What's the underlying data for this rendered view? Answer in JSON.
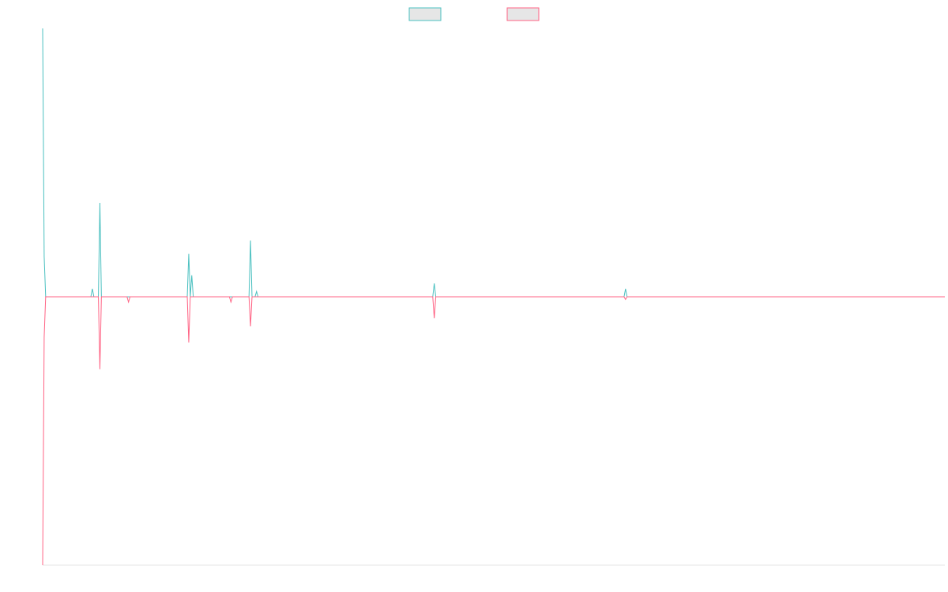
{
  "chart_data": {
    "type": "line",
    "title": "",
    "xlabel": "",
    "ylabel": "",
    "grid": false,
    "legend_position": "top-center",
    "ylim": [
      -100,
      100
    ],
    "series": [
      {
        "name": "",
        "color": "#4bc0c0",
        "fill": "#e6e6e6",
        "values": [
          100,
          15,
          0,
          0,
          0,
          0,
          0,
          0,
          0,
          0,
          0,
          0,
          0,
          0,
          0,
          0,
          0,
          0,
          0,
          0,
          0,
          0,
          0,
          0,
          0,
          0,
          0,
          0,
          0,
          0,
          0,
          0,
          0,
          3,
          0,
          0,
          0,
          0,
          35,
          0,
          0,
          0,
          0,
          0,
          0,
          0,
          0,
          0,
          0,
          0,
          0,
          0,
          0,
          0,
          0,
          0,
          0,
          0,
          0,
          0,
          0,
          0,
          0,
          0,
          0,
          0,
          0,
          0,
          0,
          0,
          0,
          0,
          0,
          0,
          0,
          0,
          0,
          0,
          0,
          0,
          0,
          0,
          0,
          0,
          0,
          0,
          0,
          0,
          0,
          0,
          0,
          0,
          0,
          0,
          0,
          0,
          0,
          16,
          0,
          8,
          0,
          0,
          0,
          0,
          0,
          0,
          0,
          0,
          0,
          0,
          0,
          0,
          0,
          0,
          0,
          0,
          0,
          0,
          0,
          0,
          0,
          0,
          0,
          0,
          0,
          0,
          0,
          0,
          0,
          0,
          0,
          0,
          0,
          0,
          0,
          0,
          0,
          0,
          21,
          0,
          0,
          0,
          2,
          0,
          0,
          0,
          0,
          0,
          0,
          0,
          0,
          0,
          0,
          0,
          0,
          0,
          0,
          0,
          0,
          0,
          0,
          0,
          0,
          0,
          0,
          0,
          0,
          0,
          0,
          0,
          0,
          0,
          0,
          0,
          0,
          0,
          0,
          0,
          0,
          0,
          0,
          0,
          0,
          0,
          0,
          0,
          0,
          0,
          0,
          0,
          0,
          0,
          0,
          0,
          0,
          0,
          0,
          0,
          0,
          0,
          0,
          0,
          0,
          0,
          0,
          0,
          0,
          0,
          0,
          0,
          0,
          0,
          0,
          0,
          0,
          0,
          0,
          0,
          0,
          0,
          0,
          0,
          0,
          0,
          0,
          0,
          0,
          0,
          0,
          0,
          0,
          0,
          0,
          0,
          0,
          0,
          0,
          0,
          0,
          0,
          0,
          0,
          0,
          0,
          0,
          0,
          0,
          0,
          0,
          0,
          0,
          0,
          0,
          0,
          0,
          0,
          0,
          0,
          0,
          0,
          5,
          0,
          0,
          0,
          0,
          0,
          0,
          0,
          0,
          0,
          0,
          0,
          0,
          0,
          0,
          0,
          0,
          0,
          0,
          0,
          0,
          0,
          0,
          0,
          0,
          0,
          0,
          0,
          0,
          0,
          0,
          0,
          0,
          0,
          0,
          0,
          0,
          0,
          0,
          0,
          0,
          0,
          0,
          0,
          0,
          0,
          0,
          0,
          0,
          0,
          0,
          0,
          0,
          0,
          0,
          0,
          0,
          0,
          0,
          0,
          0,
          0,
          0,
          0,
          0,
          0,
          0,
          0,
          0,
          0,
          0,
          0,
          0,
          0,
          0,
          0,
          0,
          0,
          0,
          0,
          0,
          0,
          0,
          0,
          0,
          0,
          0,
          0,
          0,
          0,
          0,
          0,
          0,
          0,
          0,
          0,
          0,
          0,
          0,
          0,
          0,
          0,
          0,
          0,
          0,
          0,
          0,
          0,
          0,
          0,
          0,
          0,
          0,
          0,
          0,
          0,
          0,
          0,
          0,
          0,
          0,
          0,
          0,
          0,
          0,
          0,
          0,
          3,
          0,
          0,
          0,
          0,
          0,
          0,
          0,
          0,
          0,
          0,
          0,
          0,
          0,
          0,
          0,
          0,
          0,
          0,
          0,
          0,
          0,
          0,
          0,
          0,
          0,
          0,
          0,
          0,
          0,
          0,
          0,
          0,
          0,
          0,
          0,
          0,
          0,
          0,
          0,
          0,
          0,
          0,
          0,
          0,
          0,
          0,
          0,
          0,
          0,
          0,
          0,
          0,
          0,
          0,
          0,
          0,
          0,
          0,
          0,
          0,
          0,
          0,
          0,
          0,
          0,
          0,
          0,
          0,
          0,
          0,
          0,
          0,
          0,
          0,
          0,
          0,
          0,
          0,
          0,
          0,
          0,
          0,
          0,
          0,
          0,
          0,
          0,
          0,
          0,
          0,
          0,
          0,
          0,
          0,
          0,
          0,
          0,
          0,
          0,
          0,
          0,
          0,
          0,
          0,
          0,
          0,
          0,
          0,
          0,
          0,
          0,
          0,
          0,
          0,
          0,
          0,
          0,
          0,
          0,
          0,
          0,
          0,
          0,
          0,
          0,
          0,
          0,
          0,
          0,
          0,
          0,
          0,
          0,
          0,
          0,
          0,
          0,
          0,
          0,
          0,
          0,
          0,
          0,
          0,
          0,
          0,
          0,
          0,
          0,
          0,
          0,
          0,
          0,
          0,
          0,
          0,
          0,
          0,
          0,
          0,
          0,
          0,
          0,
          0,
          0,
          0,
          0,
          0,
          0,
          0,
          0,
          0,
          0,
          0,
          0,
          0,
          0,
          0,
          0,
          0,
          0,
          0,
          0,
          0,
          0,
          0,
          0,
          0,
          0,
          0,
          0,
          0,
          0,
          0,
          0,
          0,
          0,
          0,
          0,
          0,
          0,
          0,
          0,
          0,
          0,
          0,
          0,
          0,
          0,
          0,
          0,
          0
        ]
      },
      {
        "name": "",
        "color": "#ff6384",
        "fill": "#e6e6e6",
        "values": [
          -100,
          -15,
          0,
          0,
          0,
          0,
          0,
          0,
          0,
          0,
          0,
          0,
          0,
          0,
          0,
          0,
          0,
          0,
          0,
          0,
          0,
          0,
          0,
          0,
          0,
          0,
          0,
          0,
          0,
          0,
          0,
          0,
          0,
          0,
          0,
          0,
          0,
          0,
          -27,
          0,
          0,
          0,
          0,
          0,
          0,
          0,
          0,
          0,
          0,
          0,
          0,
          0,
          0,
          0,
          0,
          0,
          0,
          -2,
          0,
          0,
          0,
          0,
          0,
          0,
          0,
          0,
          0,
          0,
          0,
          0,
          0,
          0,
          0,
          0,
          0,
          0,
          0,
          0,
          0,
          0,
          0,
          0,
          0,
          0,
          0,
          0,
          0,
          0,
          0,
          0,
          0,
          0,
          0,
          0,
          0,
          0,
          0,
          -17,
          0,
          0,
          0,
          0,
          0,
          0,
          0,
          0,
          0,
          0,
          0,
          0,
          0,
          0,
          0,
          0,
          0,
          0,
          0,
          0,
          0,
          0,
          0,
          0,
          0,
          0,
          0,
          -2,
          0,
          0,
          0,
          0,
          0,
          0,
          0,
          0,
          0,
          0,
          0,
          0,
          -11,
          0,
          0,
          0,
          0,
          0,
          0,
          0,
          0,
          0,
          0,
          0,
          0,
          0,
          0,
          0,
          0,
          0,
          0,
          0,
          0,
          0,
          0,
          0,
          0,
          0,
          0,
          0,
          0,
          0,
          0,
          0,
          0,
          0,
          0,
          0,
          0,
          0,
          0,
          0,
          0,
          0,
          0,
          0,
          0,
          0,
          0,
          0,
          0,
          0,
          0,
          0,
          0,
          0,
          0,
          0,
          0,
          0,
          0,
          0,
          0,
          0,
          0,
          0,
          0,
          0,
          0,
          0,
          0,
          0,
          0,
          0,
          0,
          0,
          0,
          0,
          0,
          0,
          0,
          0,
          0,
          0,
          0,
          0,
          0,
          0,
          0,
          0,
          0,
          0,
          0,
          0,
          0,
          0,
          0,
          0,
          0,
          0,
          0,
          0,
          0,
          0,
          0,
          0,
          0,
          0,
          0,
          0,
          0,
          0,
          0,
          0,
          0,
          0,
          0,
          0,
          0,
          0,
          0,
          0,
          0,
          0,
          -8,
          0,
          0,
          0,
          0,
          0,
          0,
          0,
          0,
          0,
          0,
          0,
          0,
          0,
          0,
          0,
          0,
          0,
          0,
          0,
          0,
          0,
          0,
          0,
          0,
          0,
          0,
          0,
          0,
          0,
          0,
          0,
          0,
          0,
          0,
          0,
          0,
          0,
          0,
          0,
          0,
          0,
          0,
          0,
          0,
          0,
          0,
          0,
          0,
          0,
          0,
          0,
          0,
          0,
          0,
          0,
          0,
          0,
          0,
          0,
          0,
          0,
          0,
          0,
          0,
          0,
          0,
          0,
          0,
          0,
          0,
          0,
          0,
          0,
          0,
          0,
          0,
          0,
          0,
          0,
          0,
          0,
          0,
          0,
          0,
          0,
          0,
          0,
          0,
          0,
          0,
          0,
          0,
          0,
          0,
          0,
          0,
          0,
          0,
          0,
          0,
          0,
          0,
          0,
          0,
          0,
          0,
          0,
          0,
          0,
          0,
          0,
          0,
          0,
          0,
          0,
          0,
          0,
          0,
          0,
          0,
          0,
          0,
          0,
          0,
          0,
          0,
          -1,
          0,
          0,
          0,
          0,
          0,
          0,
          0,
          0,
          0,
          0,
          0,
          0,
          0,
          0,
          0,
          0,
          0,
          0,
          0,
          0,
          0,
          0,
          0,
          0,
          0,
          0,
          0,
          0,
          0,
          0,
          0,
          0,
          0,
          0,
          0,
          0,
          0,
          0,
          0,
          0,
          0,
          0,
          0,
          0,
          0,
          0,
          0,
          0,
          0,
          0,
          0,
          0,
          0,
          0,
          0,
          0,
          0,
          0,
          0,
          0,
          0,
          0,
          0,
          0,
          0,
          0,
          0,
          0,
          0,
          0,
          0,
          0,
          0,
          0,
          0,
          0,
          0,
          0,
          0,
          0,
          0,
          0,
          0,
          0,
          0,
          0,
          0,
          0,
          0,
          0,
          0,
          0,
          0,
          0,
          0,
          0,
          0,
          0,
          0,
          0,
          0,
          0,
          0,
          0,
          0,
          0,
          0,
          0,
          0,
          0,
          0,
          0,
          0,
          0,
          0,
          0,
          0,
          0,
          0,
          0,
          0,
          0,
          0,
          0,
          0,
          0,
          0,
          0,
          0,
          0,
          0,
          0,
          0,
          0,
          0,
          0,
          0,
          0,
          0,
          0,
          0,
          0,
          0,
          0,
          0,
          0,
          0,
          0,
          0,
          0,
          0,
          0,
          0,
          0,
          0,
          0,
          0,
          0,
          0,
          0,
          0,
          0,
          0,
          0,
          0,
          0,
          0,
          0,
          0,
          0,
          0,
          0,
          0,
          0,
          0,
          0,
          0,
          0,
          0,
          0,
          0,
          0,
          0,
          0,
          0,
          0,
          0,
          0,
          0,
          0,
          0,
          0,
          0,
          0,
          0,
          0,
          0,
          0,
          0,
          0,
          0,
          0,
          0,
          0,
          0,
          0,
          0,
          0,
          0,
          0,
          0,
          0
        ]
      }
    ]
  }
}
